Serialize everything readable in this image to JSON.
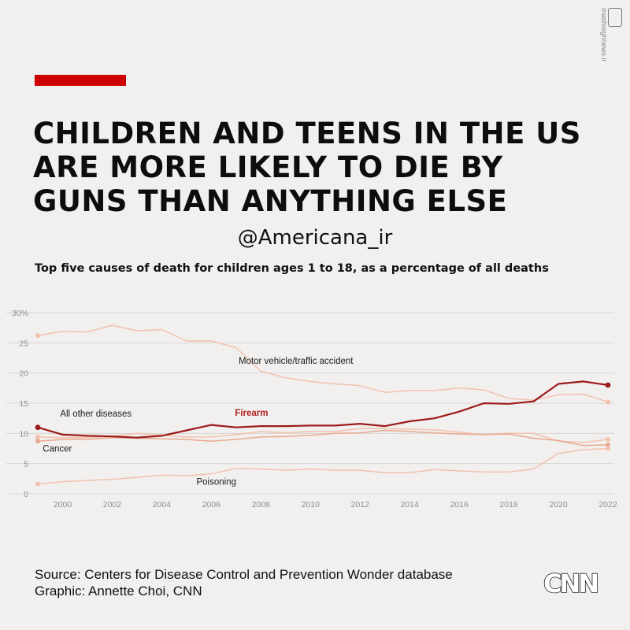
{
  "header": {
    "title_lines": [
      "CHILDREN AND TEENS IN THE US",
      "ARE MORE LIKELY TO DIE BY",
      "GUNS THAN ANYTHING ELSE"
    ],
    "handle": "@Americana_ir",
    "subtitle": "Top five causes of death for children ages 1 to 18, as a percentage of all deaths"
  },
  "colors": {
    "accent": "#cc0000",
    "firearm": "#9c1b1b",
    "firearm_label": "#b22222",
    "motor": "#f2c1ad",
    "other": "#f2c1ad",
    "cancer": "#e9a98f",
    "poisoning": "#f2c1ad",
    "grid": "#d9d6d3",
    "axis_text": "#8e8e8e"
  },
  "chart_data": {
    "type": "line",
    "title": "Top five causes of death for children ages 1 to 18, as a percentage of all deaths",
    "xlabel": "",
    "ylabel": "",
    "ylim": [
      0,
      30
    ],
    "xlim": [
      1999,
      2022
    ],
    "grid": true,
    "y_ticks": [
      0,
      5,
      10,
      15,
      20,
      25,
      30
    ],
    "y_tick_labels": [
      "0",
      "5",
      "10",
      "15",
      "20",
      "25",
      "30%"
    ],
    "x_ticks": [
      2000,
      2002,
      2004,
      2006,
      2008,
      2010,
      2012,
      2014,
      2016,
      2018,
      2020,
      2022
    ],
    "x": [
      1999,
      2000,
      2001,
      2002,
      2003,
      2004,
      2005,
      2006,
      2007,
      2008,
      2009,
      2010,
      2011,
      2012,
      2013,
      2014,
      2015,
      2016,
      2017,
      2018,
      2019,
      2020,
      2021,
      2022
    ],
    "series": [
      {
        "name": "Motor vehicle/traffic accident",
        "color_key": "motor",
        "width": 1.5,
        "label": "Motor vehicle/traffic accident",
        "label_anchor": {
          "year": 2007.1,
          "value": 21.5
        },
        "label_color_key": "label_dark",
        "values": [
          26.2,
          26.9,
          26.8,
          27.9,
          27.0,
          27.2,
          25.3,
          25.3,
          24.2,
          20.3,
          19.2,
          18.6,
          18.2,
          17.9,
          16.8,
          17.1,
          17.1,
          17.5,
          17.2,
          15.8,
          15.5,
          16.4,
          16.5,
          15.2
        ]
      },
      {
        "name": "All other diseases",
        "color_key": "other",
        "width": 1.5,
        "label": "All other diseases",
        "label_anchor": {
          "year": 1999.9,
          "value": 12.8
        },
        "label_color_key": "label_dark",
        "values": [
          9.4,
          9.3,
          9.3,
          9.5,
          10.0,
          9.7,
          9.4,
          9.4,
          9.8,
          10.3,
          10.1,
          10.3,
          10.3,
          10.8,
          10.8,
          10.7,
          10.6,
          10.2,
          9.8,
          10.0,
          10.0,
          8.7,
          8.5,
          9.0
        ]
      },
      {
        "name": "Cancer",
        "color_key": "cancer",
        "width": 1.5,
        "label": "Cancer",
        "label_anchor": {
          "year": 1999.2,
          "value": 7.0
        },
        "label_color_key": "label_dark",
        "values": [
          8.7,
          9.0,
          9.0,
          9.3,
          9.2,
          9.1,
          9.0,
          8.7,
          9.0,
          9.4,
          9.5,
          9.7,
          10.0,
          10.1,
          10.5,
          10.3,
          10.1,
          9.9,
          9.8,
          9.9,
          9.2,
          8.8,
          8.0,
          8.1
        ]
      },
      {
        "name": "Poisoning",
        "color_key": "poisoning",
        "width": 1.5,
        "label": "Poisoning",
        "label_anchor": {
          "year": 2005.4,
          "value": 1.5
        },
        "label_color_key": "label_dark",
        "values": [
          1.6,
          2.0,
          2.2,
          2.4,
          2.7,
          3.1,
          3.0,
          3.3,
          4.2,
          4.1,
          3.9,
          4.1,
          3.9,
          3.9,
          3.5,
          3.5,
          4.0,
          3.8,
          3.6,
          3.6,
          4.1,
          6.7,
          7.3,
          7.5
        ]
      },
      {
        "name": "Firearm",
        "color_key": "firearm",
        "width": 2.2,
        "label": "Firearm",
        "label_anchor": {
          "year": 2006.95,
          "value": 12.9
        },
        "label_color_key": "firearm_label",
        "values": [
          11.0,
          9.8,
          9.6,
          9.5,
          9.3,
          9.6,
          10.5,
          11.4,
          11.0,
          11.2,
          11.2,
          11.3,
          11.3,
          11.6,
          11.2,
          12.0,
          12.5,
          13.6,
          15.0,
          14.9,
          15.3,
          18.2,
          18.6,
          18.0
        ]
      }
    ]
  },
  "footer": {
    "source_line": "Source: Centers for Disease Control and Prevention Wonder database",
    "graphic_line": "Graphic: Annette Choi, CNN",
    "logo_text": "CNN"
  },
  "watermark": {
    "text": "mashreghnews.ir"
  }
}
